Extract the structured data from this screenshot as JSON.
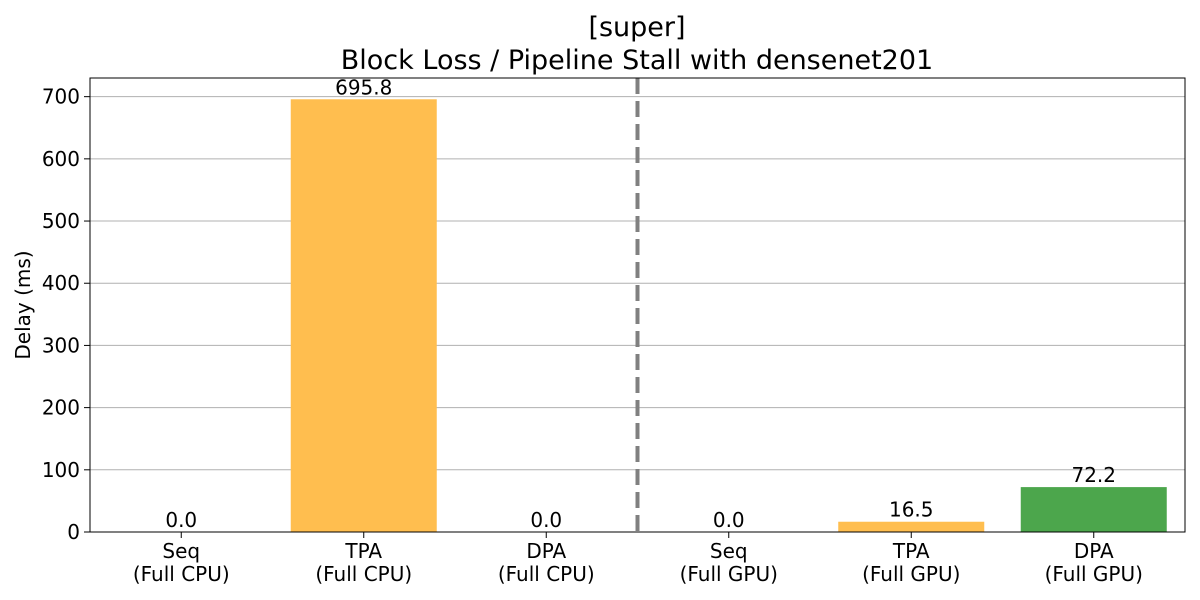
{
  "chart_data": {
    "type": "bar",
    "title_line1": "[super]",
    "title_line2": "Block Loss / Pipeline Stall with densenet201",
    "ylabel": "Delay (ms)",
    "xlabel": "",
    "ylim": [
      0,
      730
    ],
    "yticks": [
      0,
      100,
      200,
      300,
      400,
      500,
      600,
      700
    ],
    "grid": "horizontal",
    "categories": [
      [
        "Seq",
        "(Full CPU)"
      ],
      [
        "TPA",
        "(Full CPU)"
      ],
      [
        "DPA",
        "(Full CPU)"
      ],
      [
        "Seq",
        "(Full GPU)"
      ],
      [
        "TPA",
        "(Full GPU)"
      ],
      [
        "DPA",
        "(Full GPU)"
      ]
    ],
    "values": [
      0.0,
      695.8,
      0.0,
      0.0,
      16.5,
      72.2
    ],
    "value_labels": [
      "0.0",
      "695.8",
      "0.0",
      "0.0",
      "16.5",
      "72.2"
    ],
    "colors": [
      "#FFBE4F",
      "#FFBE4F",
      "#4CA64C",
      "#FFBE4F",
      "#FFBE4F",
      "#4CA64C"
    ],
    "gridline_color": "#b0b0b0",
    "separator_color": "#808080",
    "separator_style": "dashed",
    "separator_between": [
      2,
      3
    ]
  }
}
